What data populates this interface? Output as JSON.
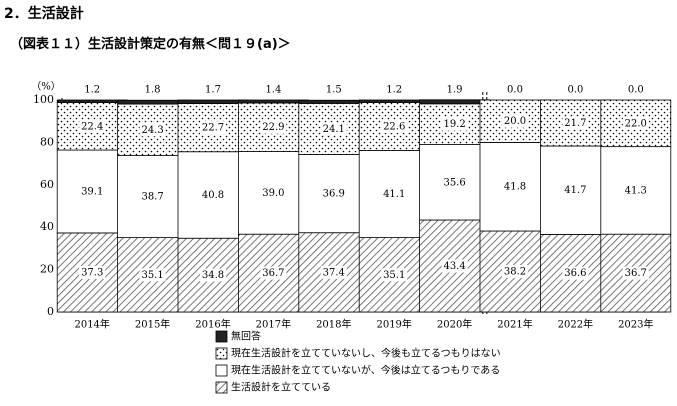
{
  "section_title": "2．生活設計",
  "figure_title": "（図表１１）生活設計策定の有無＜問１９(a)＞",
  "chart_data": {
    "type": "bar",
    "stacked": true,
    "unit_label": "（%）",
    "categories": [
      "2014年",
      "2015年",
      "2016年",
      "2017年",
      "2018年",
      "2019年",
      "2020年",
      "2021年",
      "2022年",
      "2023年"
    ],
    "series": [
      {
        "name": "生活設計を立てている",
        "pattern": "hatch",
        "values": [
          37.3,
          35.1,
          34.8,
          36.7,
          37.4,
          35.1,
          43.4,
          38.2,
          36.6,
          36.7
        ]
      },
      {
        "name": "現在生活設計を立てていないが、今後は立てるつもりである",
        "pattern": "white",
        "values": [
          39.1,
          38.7,
          40.8,
          39.0,
          36.9,
          41.1,
          35.6,
          41.8,
          41.7,
          41.3
        ]
      },
      {
        "name": "現在生活設計を立てていないし、今後も立てるつもりはない",
        "pattern": "dots",
        "values": [
          22.4,
          24.3,
          22.7,
          22.9,
          24.1,
          22.6,
          19.2,
          20.0,
          21.7,
          22.0
        ]
      },
      {
        "name": "無回答",
        "pattern": "black",
        "values": [
          1.2,
          1.8,
          1.7,
          1.4,
          1.5,
          1.2,
          1.9,
          0.0,
          0.0,
          0.0
        ]
      }
    ],
    "ylim": [
      0,
      100
    ],
    "yticks": [
      0,
      20,
      40,
      60,
      80,
      100
    ],
    "break_after_index": 6,
    "legend_order": [
      3,
      2,
      1,
      0
    ],
    "legend_position": "bottom"
  }
}
